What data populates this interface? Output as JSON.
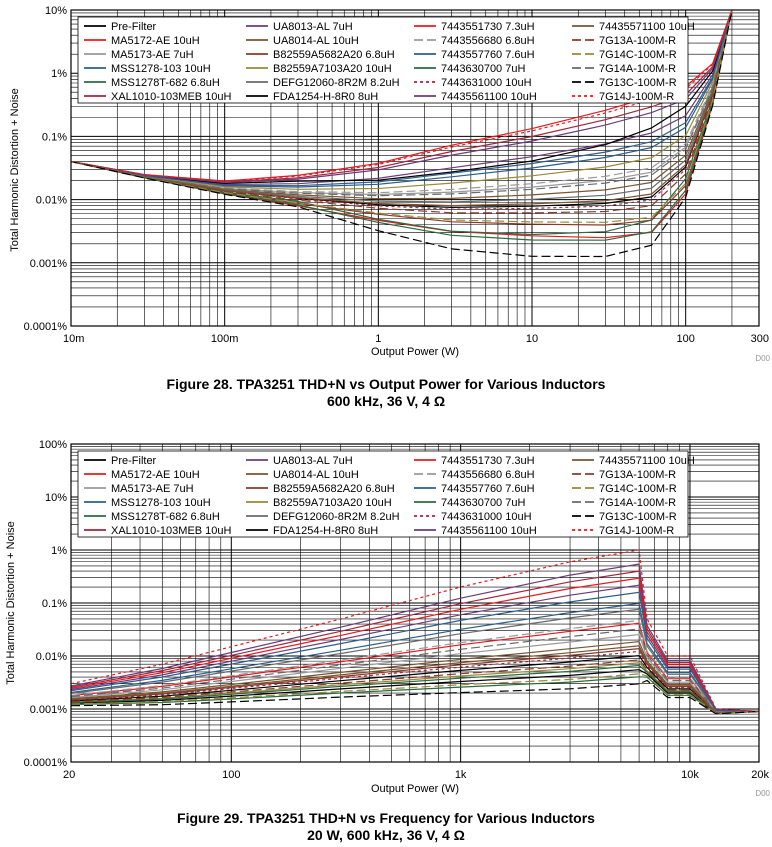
{
  "series": [
    {
      "name": "Pre-Filter",
      "color": "#000000",
      "dash": ""
    },
    {
      "name": "MA5172-AE 10uH",
      "color": "#e8191f",
      "dash": ""
    },
    {
      "name": "MA5173-AE 7uH",
      "color": "#9a9a9a",
      "dash": ""
    },
    {
      "name": "MSS1278-103 10uH",
      "color": "#2b5f8a",
      "dash": ""
    },
    {
      "name": "MSS1278T-682 6.8uH",
      "color": "#2a6b3f",
      "dash": ""
    },
    {
      "name": "XAL1010-103MEB 10uH",
      "color": "#a5263d",
      "dash": ""
    },
    {
      "name": "UA8013-AL 7uH",
      "color": "#6b3d7a",
      "dash": ""
    },
    {
      "name": "UA8014-AL 10uH",
      "color": "#7a5530",
      "dash": ""
    },
    {
      "name": "B82559A5682A20 6.8uH",
      "color": "#8a3c2c",
      "dash": ""
    },
    {
      "name": "B82559A7103A20 10uH",
      "color": "#9a8a3a",
      "dash": ""
    },
    {
      "name": "DEFG12060-8R2M 8.2uH",
      "color": "#6a6a6a",
      "dash": ""
    },
    {
      "name": "FDA1254-H-8R0 8uH",
      "color": "#000000",
      "dash": ""
    },
    {
      "name": "7443551730 7.3uH",
      "color": "#e8191f",
      "dash": ""
    },
    {
      "name": "7443556680 6.8uH",
      "color": "#9a9a9a",
      "dash": "9,4"
    },
    {
      "name": "7443557760 7.6uH",
      "color": "#2b5f8a",
      "dash": ""
    },
    {
      "name": "7443630700 7uH",
      "color": "#2a6b3f",
      "dash": ""
    },
    {
      "name": "7443631000 10uH",
      "color": "#a5263d",
      "dash": "3,3"
    },
    {
      "name": "74435561100 10uH",
      "color": "#6b3d7a",
      "dash": ""
    },
    {
      "name": "74435571100 10uH",
      "color": "#7a5530",
      "dash": ""
    },
    {
      "name": "7G13A-100M-R",
      "color": "#8a3c2c",
      "dash": "9,4"
    },
    {
      "name": "7G14C-100M-R",
      "color": "#9a8a3a",
      "dash": "9,4"
    },
    {
      "name": "7G14A-100M-R",
      "color": "#6a6a6a",
      "dash": "9,4"
    },
    {
      "name": "7G13C-100M-R",
      "color": "#000000",
      "dash": "9,4"
    },
    {
      "name": "7G14J-100M-R",
      "color": "#e8191f",
      "dash": "3,3"
    }
  ],
  "chart_data": [
    {
      "type": "line",
      "title": "Figure 28. TPA3251 THD+N vs Output Power for Various Inductors",
      "subtitle": "600 kHz, 36 V, 4 Ω",
      "xlabel": "Output Power (W)",
      "ylabel": "Total Harmonic Distortion + Noise",
      "xscale": "log",
      "yscale": "log",
      "xlim": [
        0.01,
        300
      ],
      "ylim": [
        0.0001,
        10
      ],
      "xticks": [
        0.01,
        0.1,
        1,
        10,
        100,
        300
      ],
      "xtick_labels": [
        "10m",
        "100m",
        "1",
        "10",
        "100",
        "300"
      ],
      "yticks": [
        0.0001,
        0.001,
        0.01,
        0.1,
        1,
        10
      ],
      "ytick_labels": [
        "0.0001%",
        "0.001%",
        "0.01%",
        "0.1%",
        "1%",
        "10%"
      ],
      "code": "D00",
      "shape": {
        "x": [
          0.01,
          0.03,
          0.1,
          0.3,
          1,
          3,
          10,
          30,
          60,
          100,
          150,
          200
        ],
        "low": [
          0.04,
          0.022,
          0.012,
          0.0075,
          0.0045,
          0.003,
          0.0025,
          0.0022,
          0.0025,
          0.01,
          0.3,
          10
        ],
        "high": [
          0.04,
          0.025,
          0.02,
          0.025,
          0.04,
          0.08,
          0.15,
          0.3,
          0.5,
          0.7,
          1.5,
          10
        ]
      },
      "levels": [
        0.28,
        0.05,
        0.45,
        0.62,
        0.18,
        0.9,
        0.72,
        0.38,
        0.12,
        0.55,
        0.34,
        0.8,
        0.97,
        0.48,
        0.66,
        0.08,
        0.26,
        0.86,
        0.3,
        0.22,
        0.14,
        0.43,
        0.02,
        0.95
      ],
      "dips": [
        0.0,
        0.1,
        0.0,
        0.0,
        0.45,
        0.0,
        0.0,
        0.0,
        0.0,
        0.0,
        0.0,
        0.35,
        0.0,
        0.0,
        0.0,
        0.3,
        0.0,
        0.0,
        0.0,
        0.0,
        0.0,
        0.0,
        0.55,
        0.0
      ]
    },
    {
      "type": "line",
      "title": "Figure 29. TPA3251 THD+N vs Frequency for Various Inductors",
      "subtitle": "20 W, 600 kHz, 36 V, 4 Ω",
      "xlabel": "Output Power (W)",
      "ylabel": "Total Harmonic Distortion + Noise",
      "xscale": "log",
      "yscale": "log",
      "xlim": [
        20,
        20000
      ],
      "ylim": [
        0.0001,
        100
      ],
      "xticks": [
        20,
        100,
        1000,
        10000,
        20000
      ],
      "xtick_labels": [
        "20",
        "100",
        "1k",
        "10k",
        "20k"
      ],
      "yticks": [
        0.0001,
        0.001,
        0.01,
        0.1,
        1,
        10,
        100
      ],
      "ytick_labels": [
        "0.0001%",
        "0.001%",
        "0.01%",
        "0.1%",
        "1%",
        "10%",
        "100%"
      ],
      "code": "D00",
      "shape": {
        "x": [
          20,
          50,
          100,
          300,
          1000,
          3000,
          6000,
          6500,
          8000,
          10000,
          13000,
          20000
        ],
        "low": [
          0.0011,
          0.0011,
          0.0012,
          0.0014,
          0.0016,
          0.0018,
          0.0022,
          0.003,
          0.0015,
          0.0015,
          0.0008,
          0.0009
        ],
        "high": [
          0.003,
          0.007,
          0.015,
          0.05,
          0.2,
          0.6,
          1.0,
          0.05,
          0.01,
          0.01,
          0.001,
          0.0009
        ]
      },
      "levels": [
        0.25,
        0.48,
        0.4,
        0.62,
        0.1,
        0.85,
        0.75,
        0.35,
        0.3,
        0.2,
        0.58,
        0.15,
        0.8,
        0.5,
        0.7,
        0.18,
        0.28,
        0.9,
        0.32,
        0.22,
        0.12,
        0.44,
        0.05,
        1.0
      ],
      "dips": [
        0,
        0,
        0,
        0,
        0,
        0,
        0,
        0,
        0,
        0,
        0,
        0,
        0,
        0,
        0,
        0,
        0,
        0,
        0,
        0,
        0,
        0,
        0,
        0
      ]
    }
  ]
}
